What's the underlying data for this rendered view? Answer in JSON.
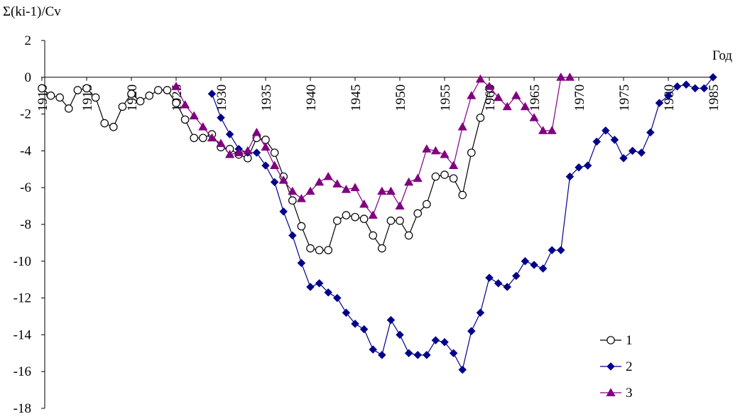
{
  "chart_data": {
    "type": "line",
    "ylabel": "Σ(ki-1)/Cv",
    "xlabel": "Год",
    "ylim": [
      -18,
      2
    ],
    "xlim": [
      1910,
      1985
    ],
    "yticks": [
      2,
      0,
      -2,
      -4,
      -6,
      -8,
      -10,
      -12,
      -14,
      -16,
      -18
    ],
    "xticks": [
      1910,
      1915,
      1920,
      1925,
      1930,
      1935,
      1940,
      1945,
      1950,
      1955,
      1960,
      1965,
      1970,
      1975,
      1980,
      1985
    ],
    "grid": false,
    "legend_position": "bottom-right",
    "series": [
      {
        "name": "1",
        "color": "#000000",
        "marker": "circle-open",
        "x": [
          1910,
          1911,
          1912,
          1913,
          1914,
          1915,
          1916,
          1917,
          1918,
          1919,
          1920,
          1921,
          1922,
          1923,
          1924,
          1925,
          1926,
          1927,
          1928,
          1929,
          1930,
          1931,
          1932,
          1933,
          1934,
          1935,
          1936,
          1937,
          1938,
          1939,
          1940,
          1941,
          1942,
          1943,
          1944,
          1945,
          1946,
          1947,
          1948,
          1949,
          1950,
          1951,
          1952,
          1953,
          1954,
          1955,
          1956,
          1957,
          1958,
          1959,
          1960
        ],
        "y": [
          -0.6,
          -1.0,
          -1.1,
          -1.7,
          -0.7,
          -0.6,
          -1.1,
          -2.5,
          -2.7,
          -1.6,
          -0.9,
          -1.3,
          -1.0,
          -0.7,
          -0.7,
          -1.4,
          -2.3,
          -3.3,
          -3.3,
          -3.1,
          -3.8,
          -3.9,
          -4.2,
          -4.4,
          -3.3,
          -3.4,
          -4.1,
          -5.4,
          -6.7,
          -8.1,
          -9.3,
          -9.4,
          -9.4,
          -7.8,
          -7.5,
          -7.6,
          -7.7,
          -8.6,
          -9.3,
          -7.8,
          -7.8,
          -8.6,
          -7.4,
          -6.9,
          -5.4,
          -5.3,
          -5.5,
          -6.4,
          -4.1,
          -2.2,
          -0.6
        ]
      },
      {
        "name": "2",
        "color": "#00008B",
        "marker": "diamond",
        "x": [
          1929,
          1930,
          1931,
          1932,
          1933,
          1934,
          1935,
          1936,
          1937,
          1938,
          1939,
          1940,
          1941,
          1942,
          1943,
          1944,
          1945,
          1946,
          1947,
          1948,
          1949,
          1950,
          1951,
          1952,
          1953,
          1954,
          1955,
          1956,
          1957,
          1958,
          1959,
          1960,
          1961,
          1962,
          1963,
          1964,
          1965,
          1966,
          1967,
          1968,
          1969,
          1970,
          1971,
          1972,
          1973,
          1974,
          1975,
          1976,
          1977,
          1978,
          1979,
          1980,
          1981,
          1982,
          1983,
          1984,
          1985
        ],
        "y": [
          -0.9,
          -2.2,
          -3.1,
          -3.9,
          -4.1,
          -4.1,
          -4.8,
          -5.7,
          -7.3,
          -8.6,
          -10.1,
          -11.4,
          -11.2,
          -11.7,
          -12.0,
          -12.8,
          -13.4,
          -13.7,
          -14.8,
          -15.1,
          -13.2,
          -14.0,
          -15.0,
          -15.1,
          -15.1,
          -14.3,
          -14.4,
          -15.0,
          -15.9,
          -13.8,
          -12.8,
          -10.9,
          -11.2,
          -11.4,
          -10.8,
          -10.0,
          -10.2,
          -10.4,
          -9.4,
          -9.4,
          -5.4,
          -4.9,
          -4.8,
          -3.5,
          -2.9,
          -3.4,
          -4.4,
          -4.0,
          -4.1,
          -3.0,
          -1.4,
          -1.0,
          -0.5,
          -0.4,
          -0.6,
          -0.6,
          0.0
        ]
      },
      {
        "name": "3",
        "color": "#800080",
        "marker": "triangle",
        "x": [
          1925,
          1926,
          1927,
          1928,
          1929,
          1930,
          1931,
          1932,
          1933,
          1934,
          1935,
          1936,
          1937,
          1938,
          1939,
          1940,
          1941,
          1942,
          1943,
          1944,
          1945,
          1946,
          1947,
          1948,
          1949,
          1950,
          1951,
          1952,
          1953,
          1954,
          1955,
          1956,
          1957,
          1958,
          1959,
          1960,
          1961,
          1962,
          1963,
          1964,
          1965,
          1966,
          1967,
          1968,
          1969
        ],
        "y": [
          -0.5,
          -1.5,
          -2.1,
          -2.7,
          -3.3,
          -3.6,
          -4.2,
          -4.1,
          -4.0,
          -3.0,
          -3.8,
          -4.8,
          -5.6,
          -6.2,
          -6.6,
          -6.2,
          -5.7,
          -5.4,
          -5.8,
          -6.1,
          -6.0,
          -6.9,
          -7.5,
          -6.2,
          -6.2,
          -7.0,
          -5.7,
          -5.5,
          -3.9,
          -4.0,
          -4.2,
          -4.8,
          -2.7,
          -1.0,
          -0.1,
          -0.5,
          -1.1,
          -1.6,
          -1.0,
          -1.6,
          -2.2,
          -2.9,
          -2.9,
          0.0,
          0.0
        ]
      }
    ]
  }
}
